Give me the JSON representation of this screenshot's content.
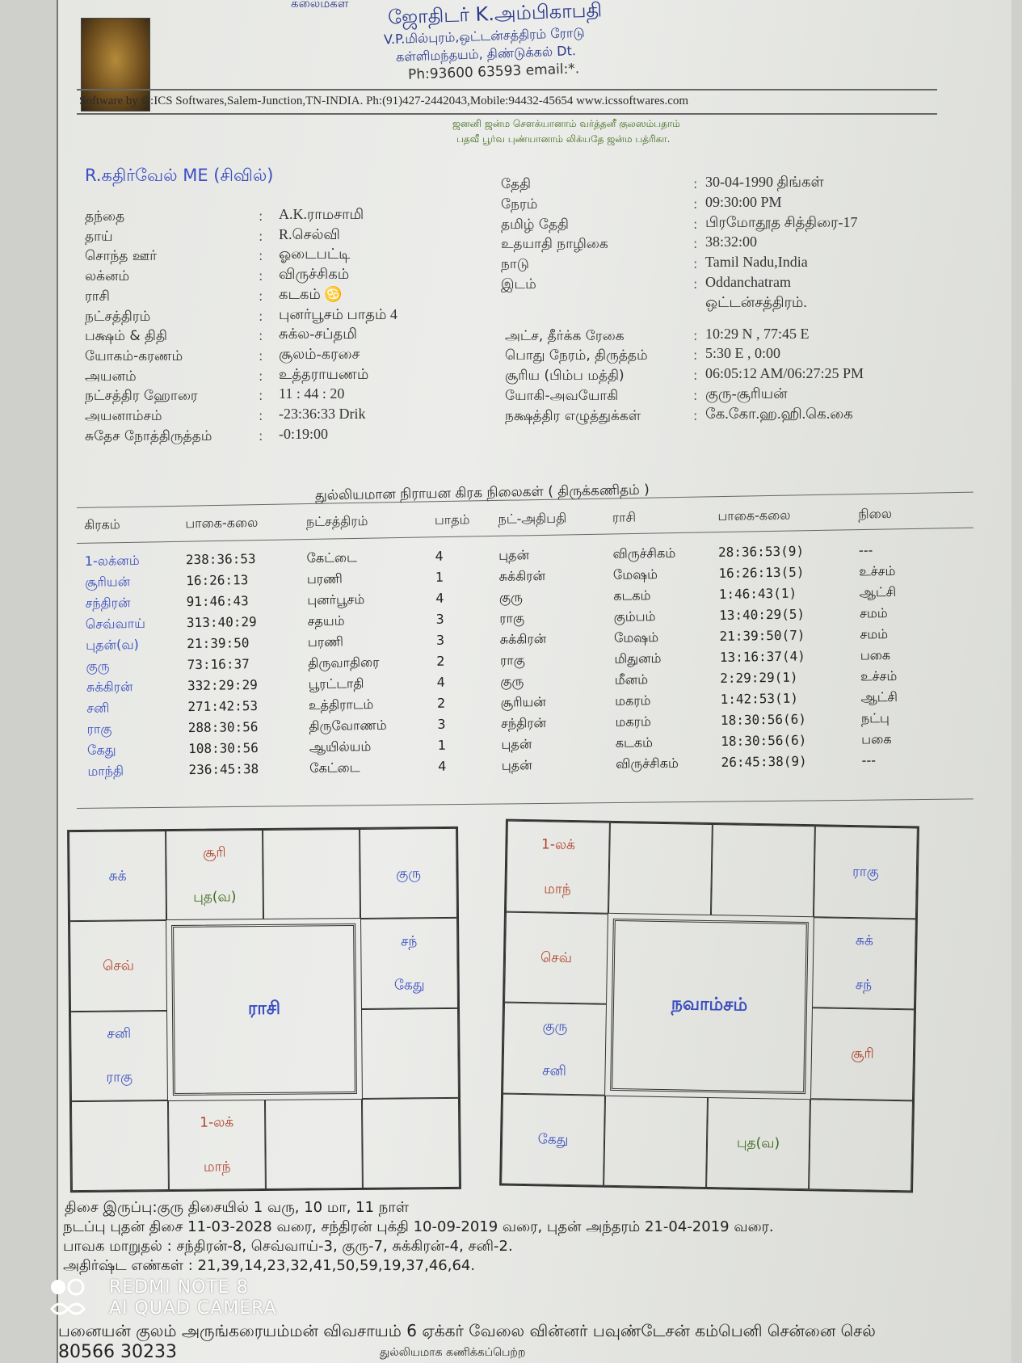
{
  "header": {
    "top_partial": "கலைமகள்",
    "astrologer": "ஜோதிடர் K.அம்பிகாபதி",
    "address1": "V.P.மில்புரம்,ஒட்டன்சத்திரம் ரோடு",
    "address2": "கள்ளிமந்தயம், திண்டுக்கல் Dt.",
    "phone": "Ph:93600 63593 email:*.",
    "software": "Software by ©:ICS Softwares,Salem-Junction,TN-INDIA. Ph:(91)427-2442043,Mobile:94432-45654 www.icssoftwares.com",
    "sloka1": "ஜனனி ஜன்ம சௌக்யானாம் வர்த்தனீ குலஸம்பதாம்",
    "sloka2": "பதவீ பூர்வ புண்யானாம் லிக்யதே ஜன்ம பத்ரிகா."
  },
  "name": "R.கதிர்வேல் ME (சிவில்)",
  "left_details": [
    {
      "label": "தந்தை",
      "value": "A.K.ராமசாமி"
    },
    {
      "label": "தாய்",
      "value": "R.செல்வி"
    },
    {
      "label": "சொந்த ஊர்",
      "value": "ஓடைபட்டி"
    },
    {
      "label": "லக்னம்",
      "value": "விருச்சிகம்"
    },
    {
      "label": "ராசி",
      "value": "கடகம் ♋"
    },
    {
      "label": "நட்சத்திரம்",
      "value": "புனர்பூசம் பாதம் 4"
    },
    {
      "label": "பக்ஷம் & திதி",
      "value": "சுக்ல-சப்தமி"
    },
    {
      "label": "யோகம்-கரணம்",
      "value": "சூலம்-கரசை"
    },
    {
      "label": "அயனம்",
      "value": "உத்தராயணம்"
    },
    {
      "label": "நட்சத்திர ஹோரை",
      "value": "11 : 44 : 20"
    },
    {
      "label": "அயனாம்சம்",
      "value": "-23:36:33 Drik"
    },
    {
      "label": "சுதேச நோத்திருத்தம்",
      "value": "-0:19:00"
    }
  ],
  "right_details": [
    {
      "label": "தேதி",
      "value": "30-04-1990 திங்கள்"
    },
    {
      "label": "நேரம்",
      "value": "09:30:00 PM"
    },
    {
      "label": "தமிழ் தேதி",
      "value": "பிரமோதூத சித்திரை-17"
    },
    {
      "label": "உதயாதி நாழிகை",
      "value": "38:32:00"
    },
    {
      "label": "நாடு",
      "value": "Tamil Nadu,India"
    },
    {
      "label": "இடம்",
      "value": "Oddanchatram"
    },
    {
      "label": "",
      "value": "ஒட்டன்சத்திரம்."
    },
    {
      "label": "அட்ச, தீர்க்க ரேகை",
      "value": "10:29 N , 77:45 E"
    },
    {
      "label": "பொது நேரம், திருத்தம்",
      "value": "5:30 E , 0:00"
    },
    {
      "label": "சூரிய (பிம்ப மத்தி)",
      "value": "06:05:12 AM/06:27:25 PM"
    },
    {
      "label": "யோகி-அவயோகி",
      "value": "குரு-சூரியன்"
    },
    {
      "label": "நக்ஷத்திர எழுத்துக்கள்",
      "value": "கே.கோ.ஹ.ஹி.கெ.கை"
    }
  ],
  "table": {
    "title": "துல்லியமான நிராயன கிரக நிலைகள் ( திருக்கணிதம் )",
    "headers": [
      "கிரகம்",
      "பாகை-கலை",
      "நட்சத்திரம்",
      "பாதம்",
      "நட்-அதிபதி",
      "ராசி",
      "பாகை-கலை",
      "நிலை"
    ],
    "rows": [
      [
        "1-லக்னம்",
        "238:36:53",
        "கேட்டை",
        "4",
        "புதன்",
        "விருச்சிகம்",
        "28:36:53(9)",
        "---"
      ],
      [
        "சூரியன்",
        "16:26:13",
        "பரணி",
        "1",
        "சுக்கிரன்",
        "மேஷம்",
        "16:26:13(5)",
        "உச்சம்"
      ],
      [
        "சந்திரன்",
        "91:46:43",
        "புனர்பூசம்",
        "4",
        "குரு",
        "கடகம்",
        "1:46:43(1)",
        "ஆட்சி"
      ],
      [
        "செவ்வாய்",
        "313:40:29",
        "சதயம்",
        "3",
        "ராகு",
        "கும்பம்",
        "13:40:29(5)",
        "சமம்"
      ],
      [
        "புதன்(வ)",
        "21:39:50",
        "பரணி",
        "3",
        "சுக்கிரன்",
        "மேஷம்",
        "21:39:50(7)",
        "சமம்"
      ],
      [
        "குரு",
        "73:16:37",
        "திருவாதிரை",
        "2",
        "ராகு",
        "மிதுனம்",
        "13:16:37(4)",
        "பகை"
      ],
      [
        "சுக்கிரன்",
        "332:29:29",
        "பூரட்டாதி",
        "4",
        "குரு",
        "மீனம்",
        "2:29:29(1)",
        "உச்சம்"
      ],
      [
        "சனி",
        "271:42:53",
        "உத்திராடம்",
        "2",
        "சூரியன்",
        "மகரம்",
        "1:42:53(1)",
        "ஆட்சி"
      ],
      [
        "ராகு",
        "288:30:56",
        "திருவோணம்",
        "3",
        "சந்திரன்",
        "மகரம்",
        "18:30:56(6)",
        "நட்பு"
      ],
      [
        "கேது",
        "108:30:56",
        "ஆயில்யம்",
        "1",
        "புதன்",
        "கடகம்",
        "18:30:56(6)",
        "பகை"
      ],
      [
        "மாந்தி",
        "236:45:38",
        "கேட்டை",
        "4",
        "புதன்",
        "விருச்சிகம்",
        "26:45:38(9)",
        "---"
      ]
    ]
  },
  "charts": [
    {
      "title": "ராசி",
      "cells": [
        [
          "சுக்"
        ],
        [
          "சூரி",
          "புத(வ)"
        ],
        [],
        [
          "குரு"
        ],
        [
          "செவ்"
        ],
        [
          "சந்",
          "கேது"
        ],
        [
          "சனி",
          "ராகு"
        ],
        [],
        [],
        [
          "1-லக்",
          "மாந்"
        ],
        [],
        []
      ]
    },
    {
      "title": "நவாம்சம்",
      "cells": [
        [
          "1-லக்",
          "மாந்"
        ],
        [],
        [],
        [
          "ராகு"
        ],
        [
          "செவ்"
        ],
        [
          "சுக்",
          "சந்"
        ],
        [
          "குரு",
          "சனி"
        ],
        [
          "சூரி"
        ],
        [
          "கேது"
        ],
        [],
        [
          "புத(வ)"
        ],
        []
      ]
    }
  ],
  "planet_colors": {
    "சூரி": "#b2452e",
    "செவ்": "#b2452e",
    "1-லக்": "#b2452e",
    "மாந்": "#b2452e",
    "புத(வ)": "#3d6a1a",
    "default": "#3b4fc0"
  },
  "footer": {
    "dasa": "திசை இருப்பு:குரு திசையில் 1 வரு, 10 மா, 11 நாள்",
    "current": "நடப்பு புதன் திசை 11-03-2028 வரை, சந்திரன் புக்தி 10-09-2019 வரை, புதன் அந்தரம் 21-04-2019 வரை.",
    "bhava": "பாவக மாறுதல் : சந்திரன்-8, செவ்வாய்-3, குரு-7, சுக்கிரன்-4, சனி-2.",
    "lucky": "அதிர்ஷ்ட எண்கள் : 21,39,14,23,32,41,50,59,19,37,46,64.",
    "note": "பனையன் குலம் அருங்கரையம்மன் விவசாயம் 6 ஏக்கர் வேலை வின்னர் பவுண்டேசன் கம்பெனி சென்னை செல்",
    "phone": "80566 30233",
    "cut": "துல்லியமாக கணிக்கப்பெற்ற"
  },
  "watermark": {
    "line1": "REDMI NOTE 8",
    "line2": "AI QUAD CAMERA"
  }
}
